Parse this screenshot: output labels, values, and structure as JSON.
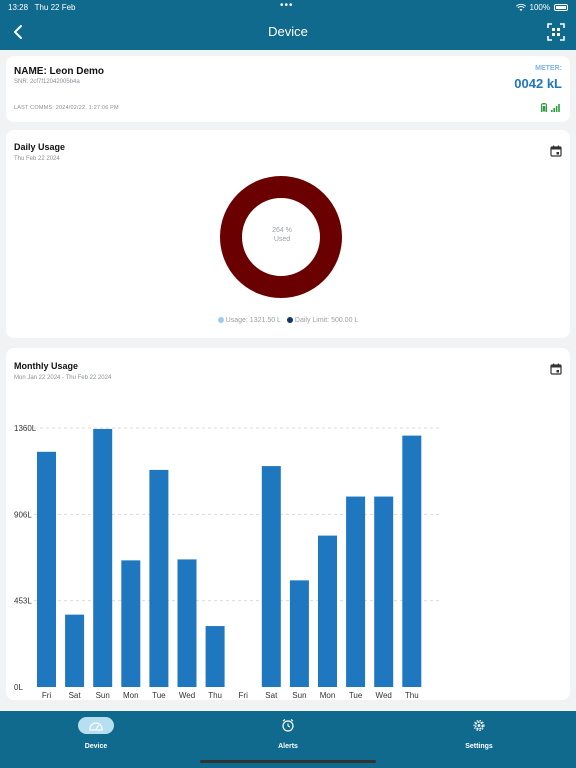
{
  "status": {
    "time": "13:28",
    "date": "Thu 22 Feb",
    "battery": "100%"
  },
  "nav": {
    "title": "Device"
  },
  "device": {
    "name": "NAME: Leon Demo",
    "snr": "SNR: 2cf7f12042005b4a",
    "last_comms": "LAST COMMS: 2024/02/22, 1:27:06 PM",
    "meter_label": "METER:",
    "meter_value": "0042 kL"
  },
  "daily": {
    "title": "Daily Usage",
    "date": "Thu Feb 22 2024",
    "center_pct": "264 %",
    "center_label": "Used",
    "legend_usage": "Usage: 1321.50 L",
    "legend_limit": "Daily Limit: 500.00 L",
    "ring_color": "#6b0000",
    "usage_dot_color": "#9ecbf0",
    "limit_dot_color": "#0d3a66"
  },
  "monthly": {
    "title": "Monthly Usage",
    "range": "Mon Jan 22 2024 - Thu Feb 22 2024"
  },
  "chart_data": {
    "type": "bar",
    "categories": [
      "Fri",
      "Sat",
      "Sun",
      "Mon",
      "Tue",
      "Wed",
      "Thu",
      "Fri",
      "Sat",
      "Sun",
      "Mon",
      "Tue",
      "Wed",
      "Thu"
    ],
    "values": [
      1235,
      380,
      1355,
      665,
      1140,
      670,
      320,
      0,
      1160,
      560,
      795,
      1000,
      1000,
      1320
    ],
    "yticks": [
      "0L",
      "453L",
      "906L",
      "1360L"
    ],
    "ylim": [
      0,
      1360
    ],
    "bar_color": "#1f77bf",
    "grid": true
  },
  "tabs": [
    {
      "label": "Device",
      "active": true
    },
    {
      "label": "Alerts",
      "active": false
    },
    {
      "label": "Settings",
      "active": false
    }
  ]
}
